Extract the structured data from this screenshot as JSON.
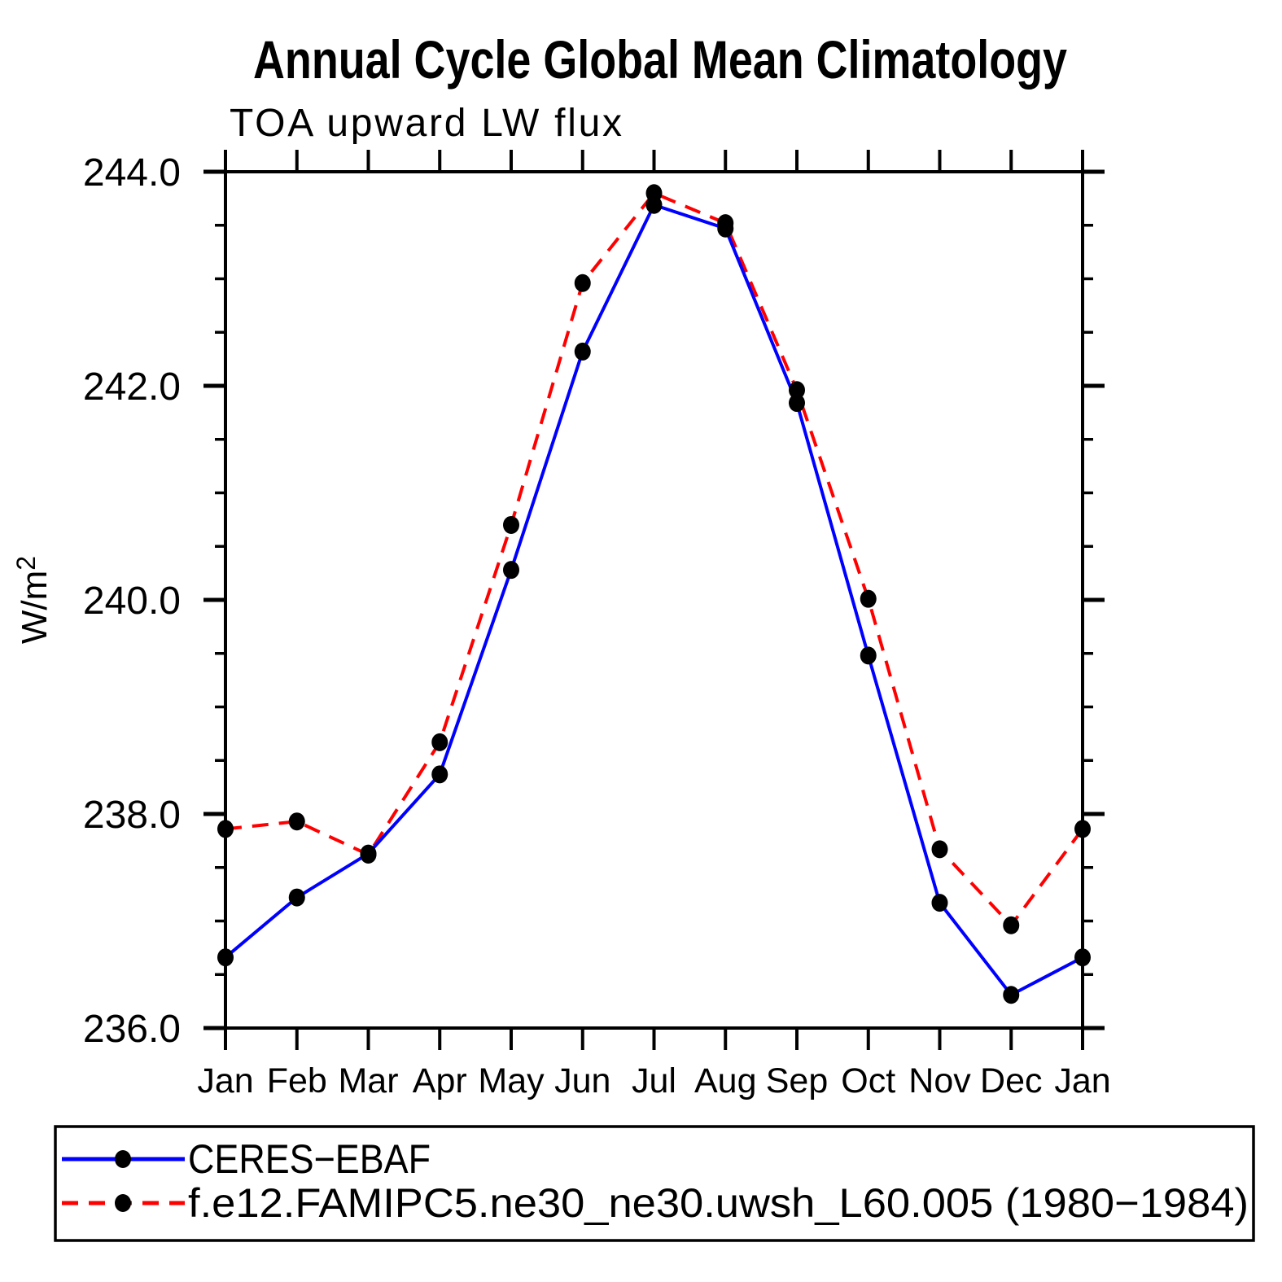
{
  "title": "Annual Cycle Global Mean Climatology",
  "subtitle": "TOA upward LW flux",
  "y_axis": {
    "label_base": "W/m",
    "label_exponent": "2",
    "tick_labels": [
      "236.0",
      "238.0",
      "240.0",
      "242.0",
      "244.0"
    ]
  },
  "x_axis": {
    "tick_labels": [
      "Jan",
      "Feb",
      "Mar",
      "Apr",
      "May",
      "Jun",
      "Jul",
      "Aug",
      "Sep",
      "Oct",
      "Nov",
      "Dec",
      "Jan"
    ]
  },
  "chart_data": {
    "type": "line",
    "title": "Annual Cycle Global Mean Climatology",
    "subtitle": "TOA upward LW flux",
    "xlabel": "",
    "ylabel": "W/m2",
    "categories": [
      "Jan",
      "Feb",
      "Mar",
      "Apr",
      "May",
      "Jun",
      "Jul",
      "Aug",
      "Sep",
      "Oct",
      "Nov",
      "Dec",
      "Jan"
    ],
    "ylim": [
      236.0,
      244.0
    ],
    "ytick_major": [
      236.0,
      238.0,
      240.0,
      242.0,
      244.0
    ],
    "ytick_minor_step": 0.5,
    "grid": false,
    "legend_position": "bottom",
    "marker": "filled-circle",
    "marker_color": "#000000",
    "axis_color": "#000000",
    "series": [
      {
        "name": "CERES−EBAF",
        "color": "#0000ff",
        "style": "solid",
        "values": [
          236.66,
          237.22,
          237.63,
          238.37,
          240.28,
          242.32,
          243.69,
          243.47,
          241.84,
          239.48,
          237.17,
          236.31,
          236.66
        ]
      },
      {
        "name": "f.e12.FAMIPC5.ne30_ne30.uwsh_L60.005 (1980−1984)",
        "color": "#ff0000",
        "style": "dashed",
        "values": [
          237.86,
          237.93,
          237.62,
          238.67,
          240.7,
          242.96,
          243.8,
          243.52,
          241.96,
          240.01,
          237.67,
          236.96,
          237.86
        ]
      }
    ]
  }
}
